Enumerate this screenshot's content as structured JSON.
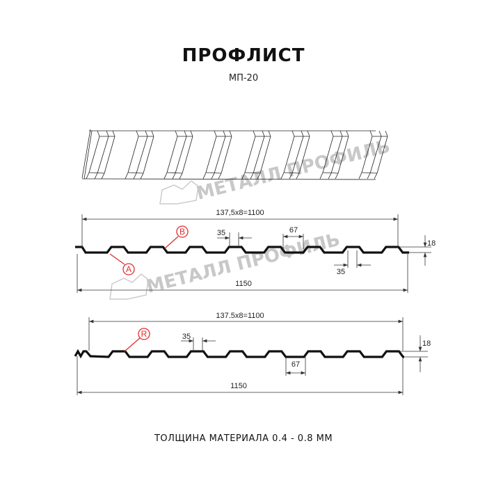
{
  "title": "ПРОФЛИСТ",
  "subtitle": "МП-20",
  "footer": "ТОЛЩИНА МАТЕРИАЛА 0.4 - 0.8 ММ",
  "watermark": "МЕТАЛЛ ПРОФИЛЬ",
  "colors": {
    "profile": "#111111",
    "callout": "#e32b2b",
    "watermark": "#c8c8c8"
  },
  "profile_a": {
    "pitch_label": "137,5x8=1100",
    "rib_top_label": "35",
    "rib_base_label": "67",
    "trough_label": "35",
    "height_label": "18",
    "total_label": "1150",
    "callout_a": "A",
    "callout_b": "B"
  },
  "profile_r": {
    "pitch_label": "137.5x8=1100",
    "rib_top_label": "35",
    "rib_base_label": "67",
    "height_label": "18",
    "total_label": "1150",
    "callout_r": "R"
  }
}
